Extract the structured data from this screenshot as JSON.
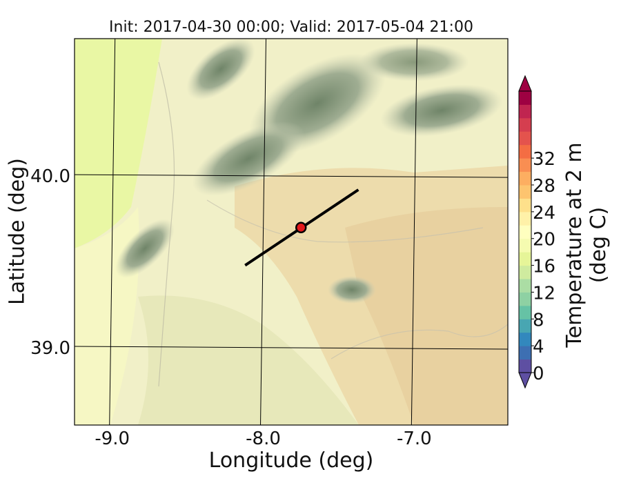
{
  "title": "Init: 2017-04-30 00:00; Valid: 2017-05-04 21:00",
  "map": {
    "xlabel": "Longitude (deg)",
    "ylabel": "Latitude (deg)",
    "x_ticks": [
      {
        "value": -9.0,
        "label": "-9.0"
      },
      {
        "value": -8.0,
        "label": "-8.0"
      },
      {
        "value": -7.0,
        "label": "-7.0"
      }
    ],
    "y_ticks": [
      {
        "value": 40.0,
        "label": "40.0"
      },
      {
        "value": 39.0,
        "label": "39.0"
      }
    ],
    "extent": {
      "lon": [
        -9.25,
        -6.38
      ],
      "lat": [
        38.55,
        40.8
      ]
    },
    "cross_section": {
      "start": {
        "lon": -8.12,
        "lat": 39.48
      },
      "end": {
        "lon": -7.37,
        "lat": 39.92
      },
      "color": "#000000"
    },
    "marker": {
      "lon": -7.75,
      "lat": 39.7,
      "color": "#e31a1c"
    }
  },
  "colorbar": {
    "label": "Temperature at 2 m (deg C)",
    "ticks": [
      "0",
      "4",
      "8",
      "12",
      "16",
      "20",
      "24",
      "28",
      "32"
    ],
    "levels": [
      0,
      2,
      4,
      6,
      8,
      10,
      12,
      14,
      16,
      18,
      20,
      22,
      24,
      26,
      28,
      30,
      32,
      34
    ],
    "colors": [
      "#5e4fa2",
      "#3d6fb2",
      "#3288bd",
      "#48a6b2",
      "#66c2a5",
      "#8ed1a3",
      "#abdda4",
      "#cfeb9f",
      "#e6f598",
      "#f5fbb0",
      "#ffffbf",
      "#fff1a8",
      "#fee08b",
      "#fdc46f",
      "#fdae61",
      "#f98e52",
      "#f46d43",
      "#e4534d",
      "#d53e4f",
      "#c02550",
      "#9e0142"
    ],
    "extend_low_color": "#5e4fa2",
    "extend_high_color": "#9e0142"
  }
}
